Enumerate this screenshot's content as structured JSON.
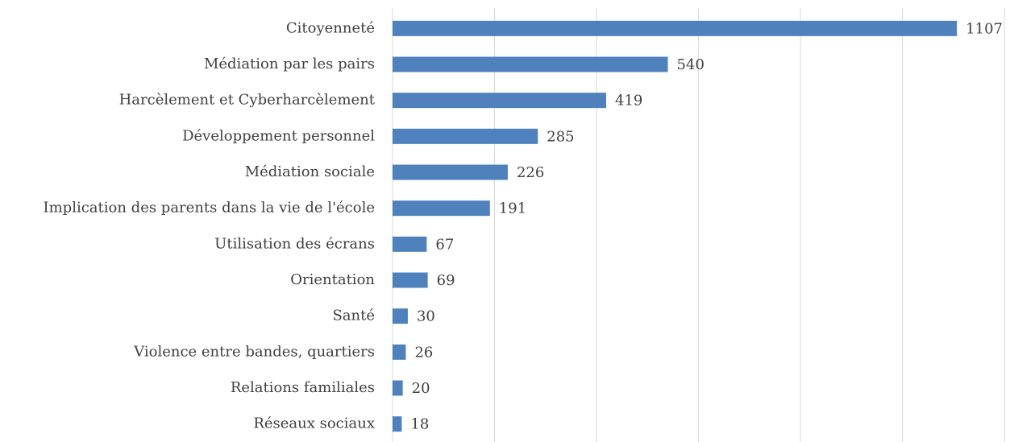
{
  "chart_data": {
    "type": "bar",
    "orientation": "horizontal",
    "categories": [
      "Citoyenneté",
      "Médiation par les pairs",
      "Harcèlement et Cyberharcèlement",
      "Développement personnel",
      "Médiation sociale",
      "Implication des parents dans la vie de l'école",
      "Utilisation des écrans",
      "Orientation",
      "Santé",
      "Violence entre bandes, quartiers",
      "Relations familiales",
      "Réseaux sociaux"
    ],
    "values": [
      1107,
      540,
      419,
      285,
      226,
      191,
      67,
      69,
      30,
      26,
      20,
      18
    ],
    "color": "#4f81bd",
    "xlim": [
      0,
      1200
    ],
    "xticks": [
      0,
      200,
      400,
      600,
      800,
      1000,
      1200
    ],
    "grid": true
  }
}
